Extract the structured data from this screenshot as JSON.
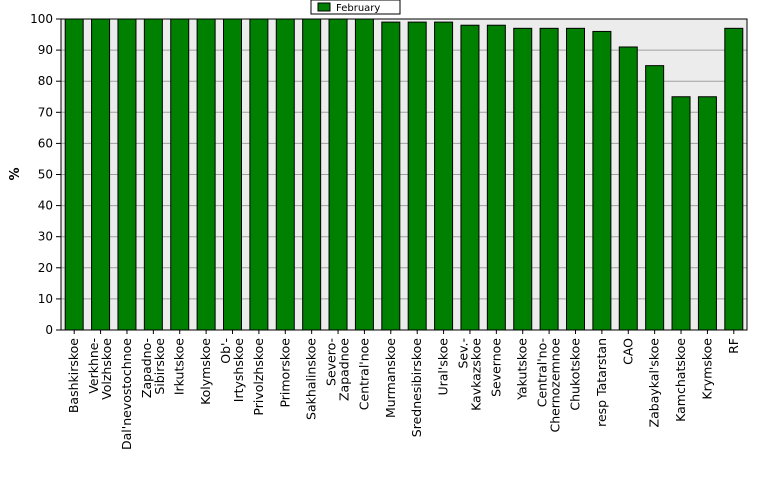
{
  "chart_data": {
    "type": "bar",
    "ylabel": "%",
    "ylim": [
      0,
      100
    ],
    "yticks": [
      0,
      10,
      20,
      30,
      40,
      50,
      60,
      70,
      80,
      90,
      100
    ],
    "grid": true,
    "legend_position": "top-center",
    "categories": [
      [
        "Bashkirskoe"
      ],
      [
        "Verkhne-",
        "Volzhskoe"
      ],
      [
        "Dal'nevostochnoe"
      ],
      [
        "Zapadno-",
        "Sibirskoe"
      ],
      [
        "Irkutskoe"
      ],
      [
        "Kolymskoe"
      ],
      [
        "Ob'-",
        "Irtyshskoe"
      ],
      [
        "Privolzhskoe"
      ],
      [
        "Primorskoe"
      ],
      [
        "Sakhalinskoe"
      ],
      [
        "Severo-",
        "Zapadnoe"
      ],
      [
        "Central'noe"
      ],
      [
        "Murmanskoe"
      ],
      [
        "Srednesibirskoe"
      ],
      [
        "Ural'skoe"
      ],
      [
        "Sev.-",
        "Kavkazskoe"
      ],
      [
        "Severnoe"
      ],
      [
        "Yakutskoe"
      ],
      [
        "Central'no-",
        "Chernozemnoe"
      ],
      [
        "Chukotskoe"
      ],
      [
        "resp Tatarstan"
      ],
      [
        "CAO"
      ],
      [
        "Zabaykal'skoe"
      ],
      [
        "Kamchatskoe"
      ],
      [
        "Krymskoe"
      ],
      [
        "RF"
      ]
    ],
    "series": [
      {
        "name": "February",
        "color": "#008000",
        "values": [
          100,
          100,
          100,
          100,
          100,
          100,
          100,
          100,
          100,
          100,
          100,
          100,
          99,
          99,
          99,
          98,
          98,
          97,
          97,
          97,
          96,
          91,
          85,
          75,
          75,
          97
        ]
      }
    ]
  },
  "colors": {
    "plot_background": "#ececec",
    "bar_fill": "#008000",
    "bar_stroke": "#000000",
    "gridline": "#a0a0a0"
  }
}
